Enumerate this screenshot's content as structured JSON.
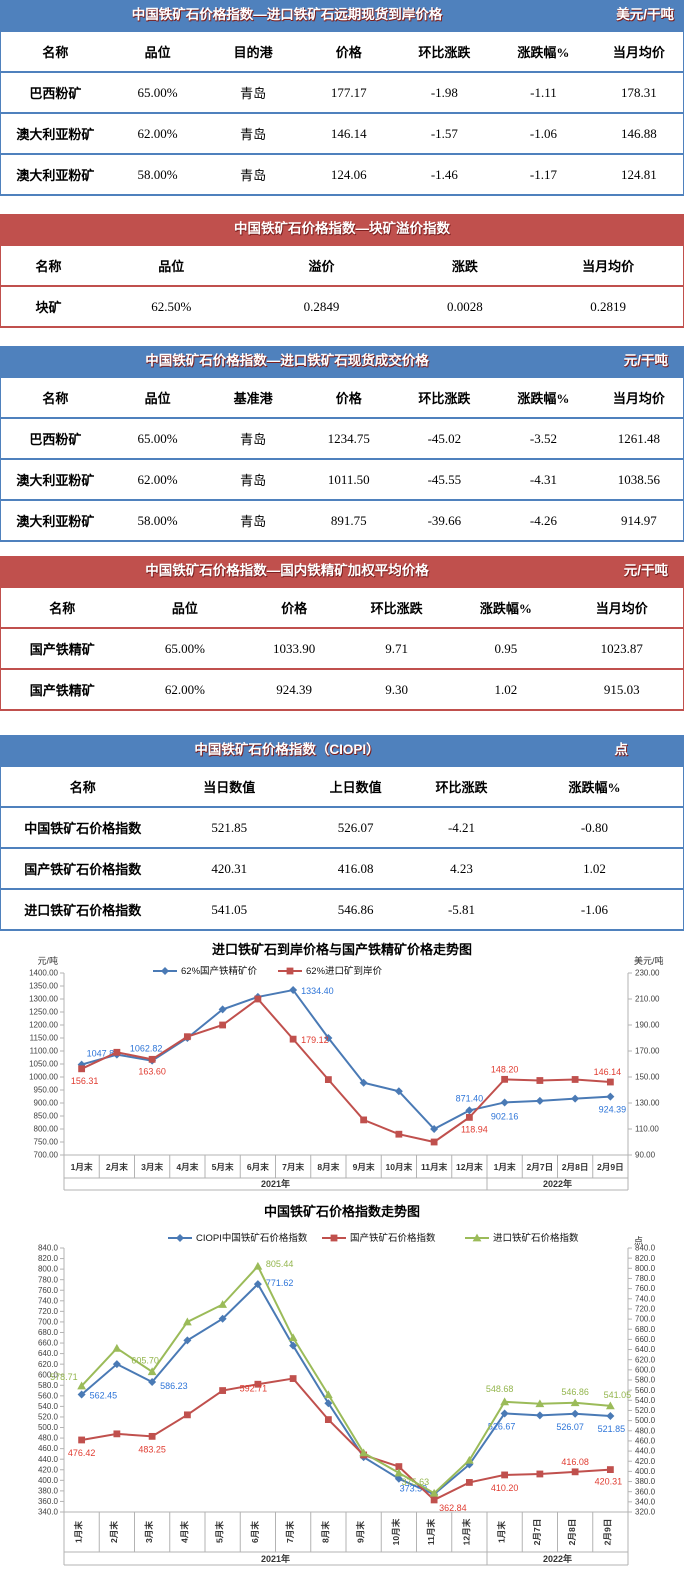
{
  "colors": {
    "blue_header": "#4f81bd",
    "red_header": "#c0504d",
    "header_text": "#ffffff",
    "header_text_shadow": "#7b1f1f",
    "axis_line": "#b3b3b3",
    "tick_text": "#404040"
  },
  "tables": [
    {
      "id": "import-forward-cfr",
      "theme": "blue",
      "title": "中国铁矿石价格指数—进口铁矿石远期现货到岸价格",
      "unit": "美元/干吨",
      "headers": [
        "名称",
        "品位",
        "目的港",
        "价格",
        "环比涨跌",
        "涨跌幅%",
        "当月均价"
      ],
      "rows": [
        [
          "巴西粉矿",
          "65.00%",
          "青岛",
          "177.17",
          "-1.98",
          "-1.11",
          "178.31"
        ],
        [
          "澳大利亚粉矿",
          "62.00%",
          "青岛",
          "146.14",
          "-1.57",
          "-1.06",
          "146.88"
        ],
        [
          "澳大利亚粉矿",
          "58.00%",
          "青岛",
          "124.06",
          "-1.46",
          "-1.17",
          "124.81"
        ]
      ]
    },
    {
      "id": "lump-premium",
      "theme": "red",
      "title": "中国铁矿石价格指数—块矿溢价指数",
      "unit": "",
      "headers": [
        "名称",
        "品位",
        "溢价",
        "涨跌",
        "当月均价"
      ],
      "rows": [
        [
          "块矿",
          "62.50%",
          "0.2849",
          "0.0028",
          "0.2819"
        ]
      ]
    },
    {
      "id": "import-spot",
      "theme": "blue",
      "title": "中国铁矿石价格指数—进口铁矿石现货成交价格",
      "unit": "元/干吨",
      "headers": [
        "名称",
        "品位",
        "基准港",
        "价格",
        "环比涨跌",
        "涨跌幅%",
        "当月均价"
      ],
      "rows": [
        [
          "巴西粉矿",
          "65.00%",
          "青岛",
          "1234.75",
          "-45.02",
          "-3.52",
          "1261.48"
        ],
        [
          "澳大利亚粉矿",
          "62.00%",
          "青岛",
          "1011.50",
          "-45.55",
          "-4.31",
          "1038.56"
        ],
        [
          "澳大利亚粉矿",
          "58.00%",
          "青岛",
          "891.75",
          "-39.66",
          "-4.26",
          "914.97"
        ]
      ]
    },
    {
      "id": "domestic-concentrate",
      "theme": "red",
      "title": "中国铁矿石价格指数—国内铁精矿加权平均价格",
      "unit": "元/干吨",
      "headers": [
        "名称",
        "品位",
        "价格",
        "环比涨跌",
        "涨跌幅%",
        "当月均价"
      ],
      "rows": [
        [
          "国产铁精矿",
          "65.00%",
          "1033.90",
          "9.71",
          "0.95",
          "1023.87"
        ],
        [
          "国产铁精矿",
          "62.00%",
          "924.39",
          "9.30",
          "1.02",
          "915.03"
        ]
      ]
    },
    {
      "id": "ciopi",
      "theme": "blue",
      "title": "中国铁矿石价格指数（CIOPI）",
      "unit": "点",
      "headers": [
        "名称",
        "当日数值",
        "上日数值",
        "环比涨跌",
        "涨跌幅%"
      ],
      "rows": [
        [
          "中国铁矿石价格指数",
          "521.85",
          "526.07",
          "-4.21",
          "-0.80"
        ],
        [
          "国产铁矿石价格指数",
          "420.31",
          "416.08",
          "4.23",
          "1.02"
        ],
        [
          "进口铁矿石价格指数",
          "541.05",
          "546.86",
          "-5.81",
          "-1.06"
        ]
      ]
    }
  ],
  "chart_data": [
    {
      "type": "line",
      "title": "进口铁矿石到岸价格与国产铁精矿价格走势图",
      "categories": [
        "1月末",
        "2月末",
        "3月末",
        "4月末",
        "5月末",
        "6月末",
        "7月末",
        "8月末",
        "9月末",
        "10月末",
        "11月末",
        "12月末",
        "1月末",
        "2月7日",
        "2月8日",
        "2月9日"
      ],
      "year_groups": [
        {
          "label": "2021年",
          "span": 12
        },
        {
          "label": "2022年",
          "span": 4
        }
      ],
      "left_axis": {
        "unit": "元/吨",
        "min": 700,
        "max": 1400,
        "step": 50,
        "decimals": 2
      },
      "right_axis": {
        "unit": "美元/吨",
        "min": 90,
        "max": 230,
        "step": 20,
        "decimals": 2
      },
      "grid": false,
      "legend_position": "top",
      "series": [
        {
          "name": "62%国产铁精矿价",
          "axis": "left",
          "marker": "diamond",
          "color": "#4a7ab5",
          "label_color": "#2e75d8",
          "values": [
            1047.8,
            1086,
            1062.82,
            1150,
            1260,
            1308,
            1334.4,
            1150,
            978,
            945,
            800,
            871.4,
            902.16,
            908,
            917,
            924.39
          ],
          "labels": [
            {
              "i": 0,
              "text": "1047.80"
            },
            {
              "i": 2,
              "text": "1062.82"
            },
            {
              "i": 6,
              "text": "1334.40"
            },
            {
              "i": 11,
              "text": "871.40"
            },
            {
              "i": 12,
              "text": "902.16"
            },
            {
              "i": 15,
              "text": "924.39"
            }
          ]
        },
        {
          "name": "62%进口矿到岸价",
          "axis": "right",
          "marker": "square",
          "color": "#c0504d",
          "label_color": "#e03c31",
          "values": [
            156.31,
            169,
            163.6,
            181,
            190,
            210,
            179.12,
            148,
            117,
            106,
            100,
            118.94,
            148.2,
            147.3,
            148.1,
            146.14
          ],
          "labels": [
            {
              "i": 0,
              "text": "156.31"
            },
            {
              "i": 2,
              "text": "163.60"
            },
            {
              "i": 6,
              "text": "179.12"
            },
            {
              "i": 11,
              "text": "118.94"
            },
            {
              "i": 12,
              "text": "148.20"
            },
            {
              "i": 15,
              "text": "146.14"
            }
          ]
        }
      ]
    },
    {
      "type": "line",
      "title": "中国铁矿石价格指数走势图",
      "categories": [
        "1月末",
        "2月末",
        "3月末",
        "4月末",
        "5月末",
        "6月末",
        "7月末",
        "8月末",
        "9月末",
        "10月末",
        "11月末",
        "12月末",
        "1月末",
        "2月7日",
        "2月8日",
        "2月9日"
      ],
      "year_groups": [
        {
          "label": "2021年",
          "span": 12
        },
        {
          "label": "2022年",
          "span": 4
        }
      ],
      "left_axis": {
        "unit": "",
        "min": 340,
        "max": 840,
        "step": 20,
        "decimals": 1
      },
      "right_axis": {
        "unit": "点",
        "min": 320,
        "max": 840,
        "step": 20,
        "decimals": 1
      },
      "grid": false,
      "legend_position": "top",
      "series": [
        {
          "name": "CIOPI中国铁矿石价格指数",
          "axis": "left",
          "marker": "diamond",
          "color": "#4a7ab5",
          "label_color": "#2e75d8",
          "values": [
            562.45,
            620,
            586.23,
            665,
            706,
            771.62,
            655,
            546,
            444,
            403,
            373.59,
            430,
            526.67,
            523,
            526.07,
            521.85
          ],
          "labels": [
            {
              "i": 0,
              "text": "562.45"
            },
            {
              "i": 2,
              "text": "586.23"
            },
            {
              "i": 5,
              "text": "771.62"
            },
            {
              "i": 10,
              "text": "373.59"
            },
            {
              "i": 12,
              "text": "526.67"
            },
            {
              "i": 14,
              "text": "526.07"
            },
            {
              "i": 15,
              "text": "521.85"
            }
          ]
        },
        {
          "name": "国产铁矿石价格指数",
          "axis": "left",
          "marker": "square",
          "color": "#c0504d",
          "label_color": "#e03c31",
          "values": [
            476.42,
            488,
            483.25,
            524,
            570,
            582,
            592.71,
            515,
            448,
            426,
            362.84,
            396,
            410.2,
            412,
            416.08,
            420.31
          ],
          "labels": [
            {
              "i": 0,
              "text": "476.42"
            },
            {
              "i": 2,
              "text": "483.25"
            },
            {
              "i": 6,
              "text": "592.71"
            },
            {
              "i": 10,
              "text": "362.84"
            },
            {
              "i": 12,
              "text": "410.20"
            },
            {
              "i": 14,
              "text": "416.08"
            },
            {
              "i": 15,
              "text": "420.31"
            }
          ]
        },
        {
          "name": "进口铁矿石价格指数",
          "axis": "left",
          "marker": "triangle",
          "color": "#9bbb59",
          "label_color": "#94b64e",
          "values": [
            578.71,
            650,
            605.7,
            700,
            733,
            805.44,
            670,
            562,
            452,
            414,
            375.63,
            438,
            548.68,
            545,
            546.86,
            541.05
          ],
          "labels": [
            {
              "i": 0,
              "text": "578.71"
            },
            {
              "i": 2,
              "text": "605.70"
            },
            {
              "i": 5,
              "text": "805.44"
            },
            {
              "i": 10,
              "text": "375.63"
            },
            {
              "i": 12,
              "text": "548.68"
            },
            {
              "i": 14,
              "text": "546.86"
            },
            {
              "i": 15,
              "text": "541.05"
            }
          ]
        }
      ]
    }
  ]
}
